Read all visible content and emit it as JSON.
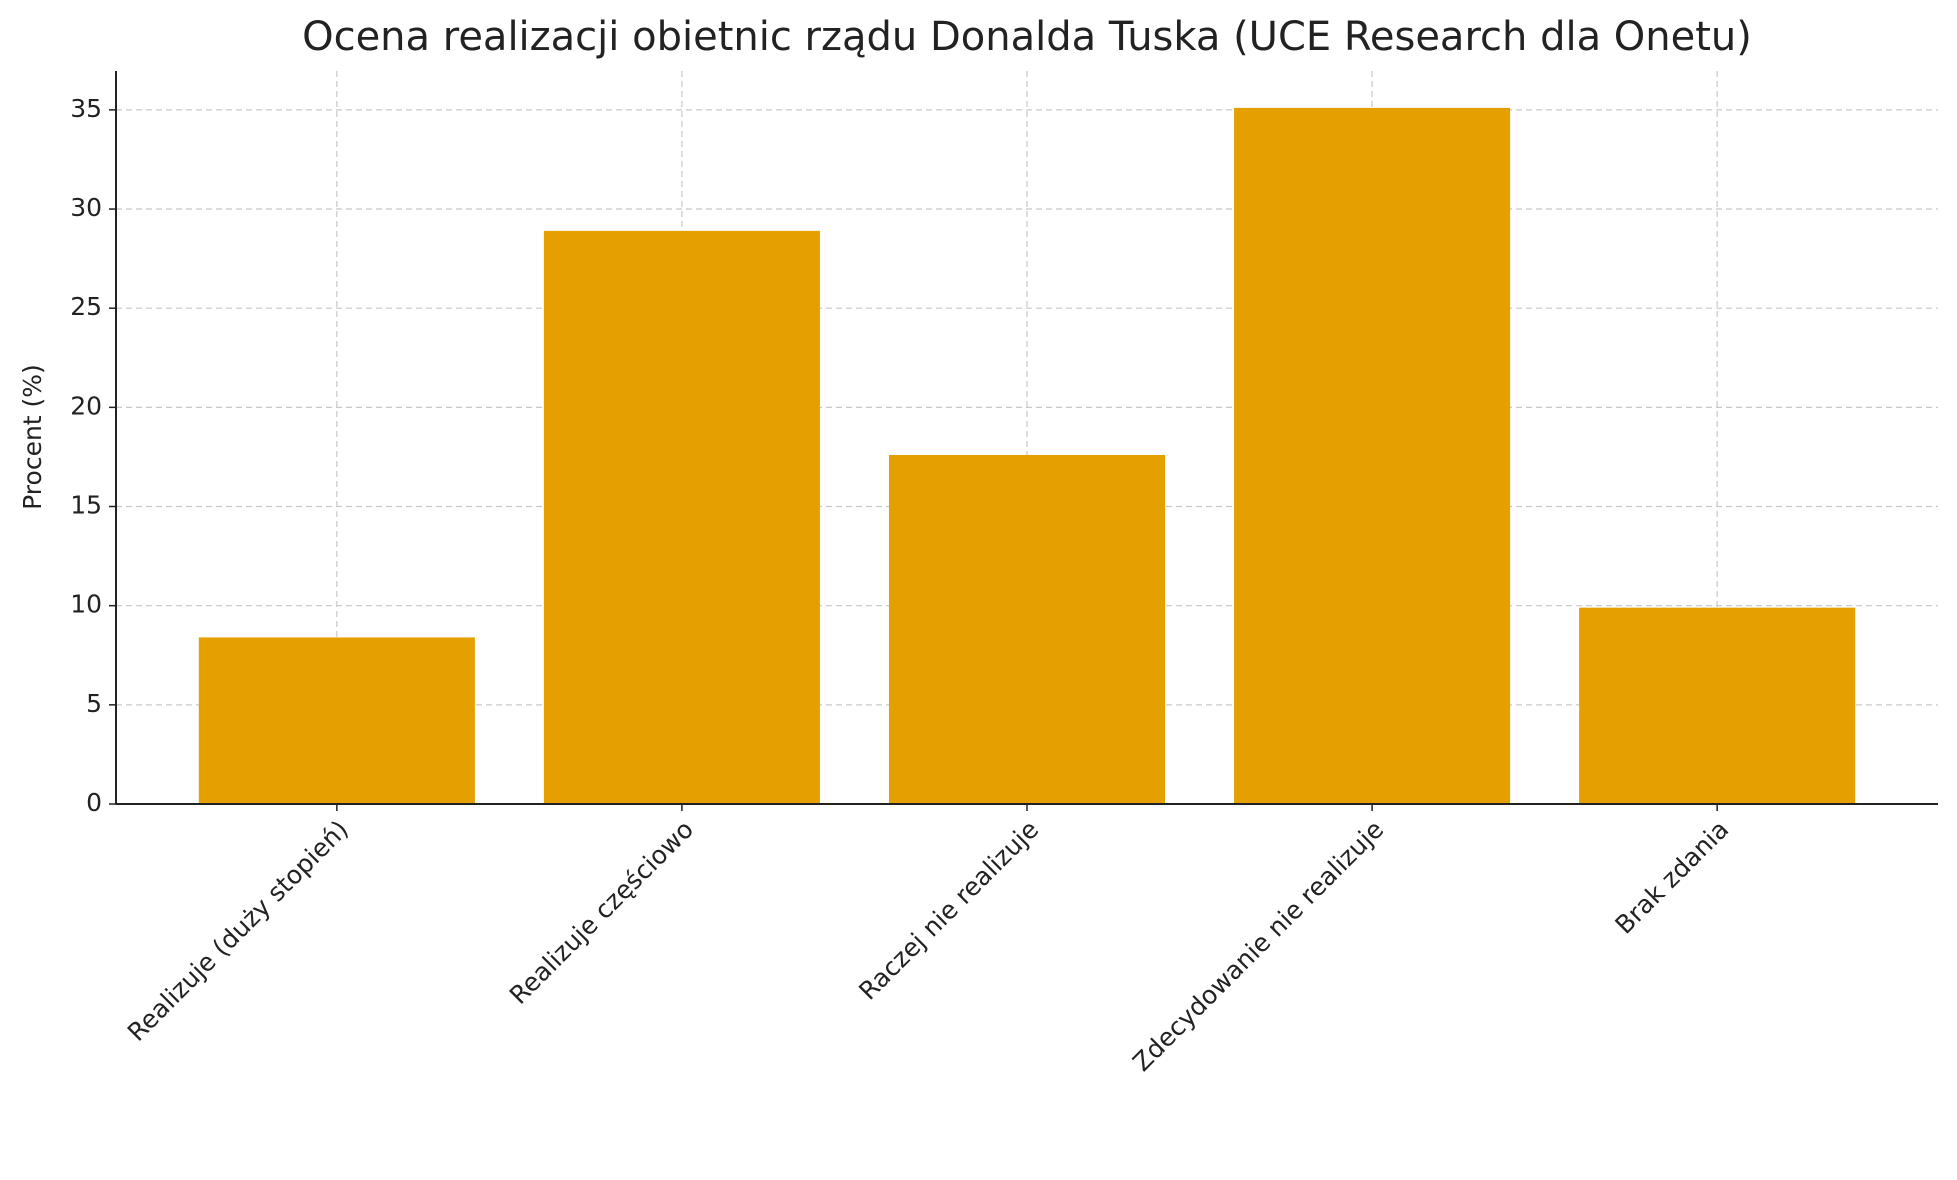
{
  "chart_data": {
    "type": "bar",
    "title": "Ocena realizacji obietnic rządu Donalda Tuska (UCE Research dla Onetu)",
    "y_label": "Procent (%)",
    "categories": [
      "Realizuje (duży stopień)",
      "Realizuje częściowo",
      "Raczej nie realizuje",
      "Zdecydowanie nie realizuje",
      "Brak zdania"
    ],
    "values": [
      8.4,
      28.9,
      17.6,
      35.1,
      9.9
    ],
    "color": "#e5a000",
    "ylim": [
      0,
      36.96
    ],
    "yticks": [
      0,
      5,
      10,
      15,
      20,
      25,
      30,
      35
    ],
    "grid": true
  }
}
